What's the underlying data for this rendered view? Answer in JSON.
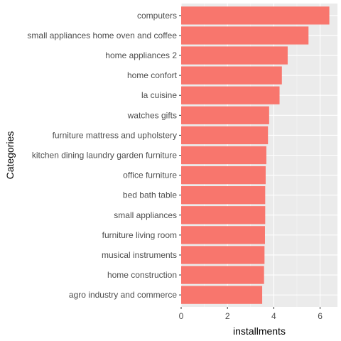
{
  "chart_data": {
    "type": "bar",
    "orientation": "horizontal",
    "xlabel": "installments",
    "ylabel": "Categories",
    "xlim": [
      0,
      6.75
    ],
    "x_ticks": [
      0,
      2,
      4,
      6
    ],
    "categories": [
      "computers",
      "small appliances home oven and coffee",
      "home appliances 2",
      "home confort",
      "la cuisine",
      "watches gifts",
      "furniture mattress and upholstery",
      "kitchen dining laundry garden furniture",
      "office furniture",
      "bed bath table",
      "small appliances",
      "furniture living room",
      "musical instruments",
      "home construction",
      "agro industry and commerce"
    ],
    "values": [
      6.4,
      5.5,
      4.6,
      4.35,
      4.25,
      3.8,
      3.75,
      3.68,
      3.65,
      3.63,
      3.63,
      3.62,
      3.6,
      3.58,
      3.5
    ],
    "colors": {
      "bar": "#F8766D",
      "panel_bg": "#EBEBEB",
      "grid_major": "#FFFFFF",
      "grid_minor": "#F5F5F5"
    },
    "grid": true,
    "legend": "none"
  }
}
